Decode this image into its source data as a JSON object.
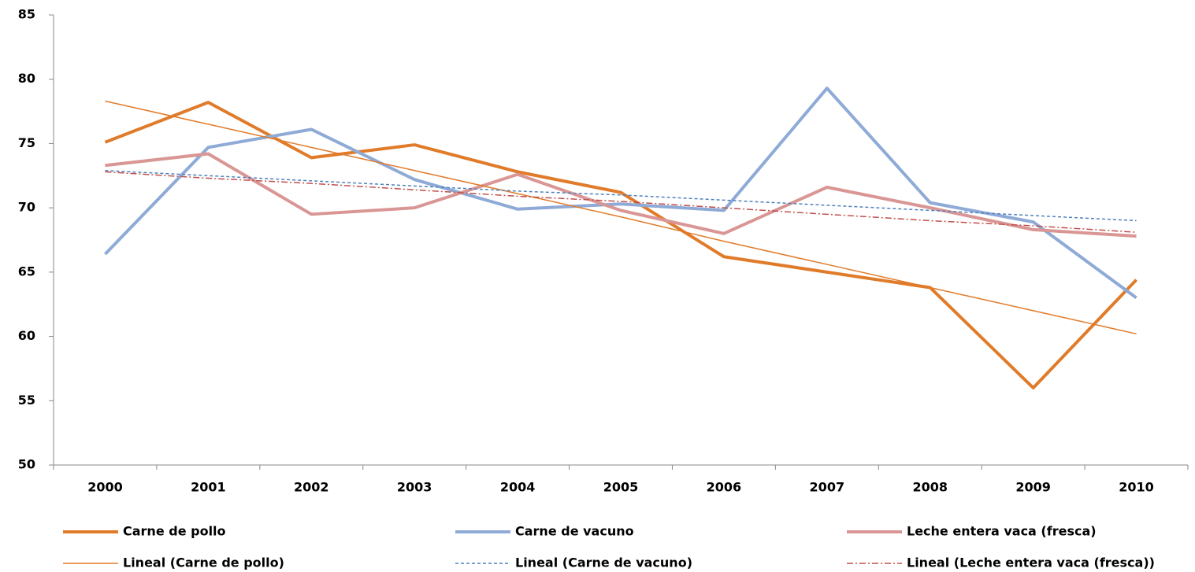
{
  "chart_data": {
    "type": "line",
    "categories": [
      "2000",
      "2001",
      "2002",
      "2003",
      "2004",
      "2005",
      "2006",
      "2007",
      "2008",
      "2009",
      "2010"
    ],
    "ylim": [
      50,
      85
    ],
    "yticks": [
      50,
      55,
      60,
      65,
      70,
      75,
      80,
      85
    ],
    "grid": false,
    "series": [
      {
        "name": "Carne de pollo",
        "color": "#e07b2a",
        "width": 4,
        "dash": "none",
        "values": [
          75.1,
          78.2,
          73.9,
          74.9,
          72.8,
          71.2,
          66.2,
          65.0,
          63.8,
          56.0,
          64.4
        ]
      },
      {
        "name": "Carne de vacuno",
        "color": "#8eaad6",
        "width": 4,
        "dash": "none",
        "values": [
          66.4,
          74.7,
          76.1,
          72.2,
          69.9,
          70.3,
          69.8,
          79.3,
          70.4,
          68.9,
          63.0
        ]
      },
      {
        "name": "Leche entera vaca (fresca)",
        "color": "#d99694",
        "width": 4,
        "dash": "none",
        "values": [
          73.3,
          74.2,
          69.5,
          70.0,
          72.6,
          69.8,
          68.0,
          71.6,
          70.0,
          68.3,
          67.8
        ]
      },
      {
        "name": "Lineal (Carne de pollo)",
        "color": "#e07b2a",
        "width": 1.5,
        "dash": "none",
        "values": [
          78.3,
          76.5,
          74.7,
          72.9,
          71.1,
          69.3,
          67.4,
          65.6,
          63.8,
          62.0,
          60.2
        ]
      },
      {
        "name": "Lineal (Carne de vacuno)",
        "color": "#4f81bd",
        "width": 1.5,
        "dash": "4 3",
        "values": [
          72.9,
          72.5,
          72.1,
          71.7,
          71.3,
          71.0,
          70.6,
          70.2,
          69.8,
          69.4,
          69.0
        ]
      },
      {
        "name": "Lineal (Leche entera vaca (fresca))",
        "color": "#c0504d",
        "width": 1.5,
        "dash": "8 3 2 3",
        "values": [
          72.8,
          72.3,
          71.9,
          71.4,
          70.9,
          70.5,
          70.0,
          69.5,
          69.0,
          68.6,
          68.1
        ]
      }
    ]
  }
}
